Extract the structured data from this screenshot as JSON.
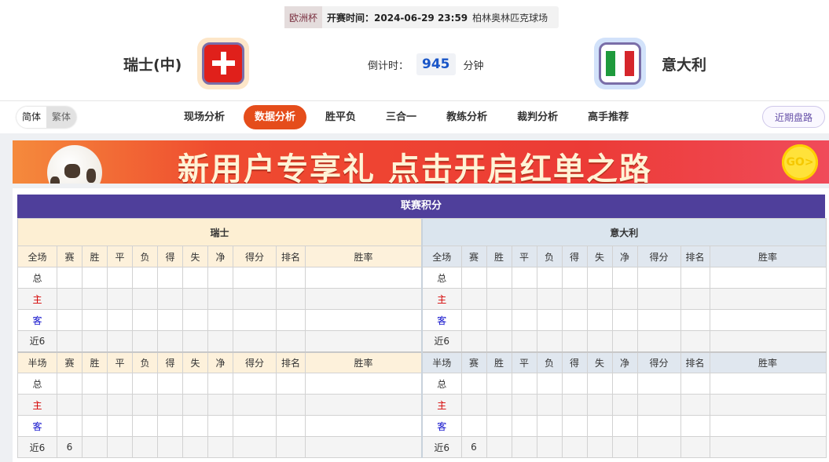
{
  "match": {
    "league": "欧洲杯",
    "kickoff": "开赛时间：2024-06-29 23:59",
    "venue": "柏林奥林匹克球场",
    "home": {
      "name": "瑞士(中)",
      "flag": "switzerland-flag"
    },
    "away": {
      "name": "意大利",
      "flag": "italy-flag"
    },
    "countdown_label": "倒计时：",
    "countdown_value": "945",
    "countdown_unit": "分钟"
  },
  "lang": {
    "simplified": "简体",
    "traditional": "繁体"
  },
  "tabs": [
    "现场分析",
    "数据分析",
    "胜平负",
    "三合一",
    "教练分析",
    "裁判分析",
    "高手推荐"
  ],
  "active_tab": "数据分析",
  "recent_button": "近期盘路",
  "banner": {
    "text": "新用户专享礼  点击开启红单之路",
    "go": "GO>"
  },
  "standings": {
    "title": "联赛积分",
    "columns": [
      "赛",
      "胜",
      "平",
      "负",
      "得",
      "失",
      "净",
      "得分",
      "排名",
      "胜率"
    ],
    "teams": [
      {
        "name": "瑞士",
        "sections": [
          {
            "label": "全场",
            "rows": [
              [
                "总",
                ""
              ],
              [
                "主",
                ""
              ],
              [
                "客",
                ""
              ],
              [
                "近6",
                ""
              ]
            ]
          },
          {
            "label": "半场",
            "rows": [
              [
                "总",
                ""
              ],
              [
                "主",
                ""
              ],
              [
                "客",
                ""
              ],
              [
                "近6",
                "6"
              ]
            ]
          }
        ]
      },
      {
        "name": "意大利",
        "sections": [
          {
            "label": "全场",
            "rows": [
              [
                "总",
                ""
              ],
              [
                "主",
                ""
              ],
              [
                "客",
                ""
              ],
              [
                "近6",
                ""
              ]
            ]
          },
          {
            "label": "半场",
            "rows": [
              [
                "总",
                ""
              ],
              [
                "主",
                ""
              ],
              [
                "客",
                ""
              ],
              [
                "近6",
                "6"
              ]
            ]
          }
        ]
      }
    ],
    "colors": {
      "title_bg": "#4f3f9b",
      "home": "#d40000",
      "away": "#1111cc"
    }
  }
}
